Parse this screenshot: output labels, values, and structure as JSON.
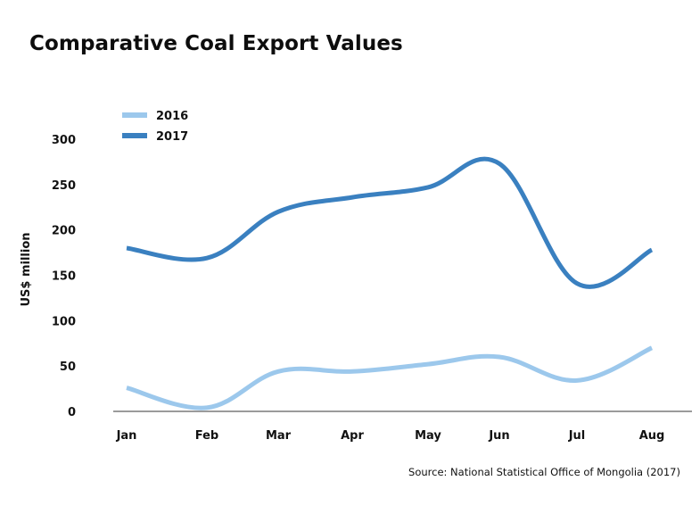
{
  "chart_data": {
    "type": "line",
    "title": "Comparative Coal Export Values",
    "xlabel": "",
    "ylabel": "US$ million",
    "categories": [
      "Jan",
      "Feb",
      "Mar",
      "Apr",
      "May",
      "Jun",
      "Jul",
      "Aug"
    ],
    "yticks": [
      0,
      50,
      100,
      150,
      200,
      250,
      300
    ],
    "ylim": [
      0,
      300
    ],
    "grid": false,
    "legend_position": "top-left",
    "series": [
      {
        "name": "2016",
        "color": "#9cc8ec",
        "values": [
          26,
          4,
          44,
          44,
          52,
          60,
          34,
          70
        ]
      },
      {
        "name": "2017",
        "color": "#3a80c0",
        "values": [
          180,
          169,
          220,
          236,
          247,
          273,
          141,
          178
        ]
      }
    ],
    "source": "Source: National Statistical Office of Mongolia (2017)"
  }
}
